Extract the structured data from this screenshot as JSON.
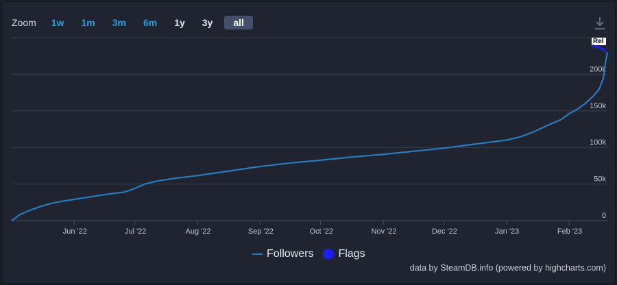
{
  "zoom": {
    "label": "Zoom",
    "buttons": [
      {
        "label": "1w",
        "style": "blue"
      },
      {
        "label": "1m",
        "style": "blue"
      },
      {
        "label": "3m",
        "style": "blue"
      },
      {
        "label": "6m",
        "style": "blue"
      },
      {
        "label": "1y",
        "style": "white"
      },
      {
        "label": "3y",
        "style": "white"
      },
      {
        "label": "all",
        "style": "active"
      }
    ]
  },
  "icons": {
    "export": "download-icon"
  },
  "colors": {
    "background": "#1f2430",
    "line": "#2a7bbd",
    "flags": "#1d1ff0",
    "grid": "#3a4050",
    "accent": "#2a9fe0"
  },
  "legend": {
    "followers": "Followers",
    "flags": "Flags"
  },
  "flag_marker": {
    "text": "Rel"
  },
  "credits": "data by SteamDB.info (powered by highcharts.com)",
  "chart_data": {
    "type": "line",
    "x_tick_labels": [
      "Jun '22",
      "Jul '22",
      "Aug '22",
      "Sep '22",
      "Oct '22",
      "Nov '22",
      "Dec '22",
      "Jan '23",
      "Feb '23"
    ],
    "y_tick_labels": [
      "0",
      "50k",
      "100k",
      "150k",
      "200k"
    ],
    "ylim": [
      0,
      250000
    ],
    "grid": "horizontal",
    "legend_position": "bottom-center",
    "series": [
      {
        "name": "Followers",
        "x": [
          "2022-05-01",
          "2022-05-05",
          "2022-05-10",
          "2022-05-15",
          "2022-05-20",
          "2022-05-25",
          "2022-06-01",
          "2022-06-10",
          "2022-06-20",
          "2022-06-26",
          "2022-07-01",
          "2022-07-06",
          "2022-07-12",
          "2022-07-20",
          "2022-08-01",
          "2022-08-15",
          "2022-09-01",
          "2022-09-15",
          "2022-10-01",
          "2022-10-15",
          "2022-11-01",
          "2022-11-15",
          "2022-12-01",
          "2022-12-15",
          "2023-01-01",
          "2023-01-08",
          "2023-01-15",
          "2023-01-22",
          "2023-01-28",
          "2023-02-01",
          "2023-02-05",
          "2023-02-09",
          "2023-02-13",
          "2023-02-16",
          "2023-02-18",
          "2023-02-19",
          "2023-02-20"
        ],
        "values": [
          0,
          8000,
          14000,
          19000,
          23000,
          26000,
          29000,
          33000,
          37000,
          39000,
          44000,
          50000,
          54000,
          57500,
          61500,
          67000,
          74000,
          78500,
          82500,
          86500,
          90500,
          94500,
          99000,
          104000,
          110000,
          114500,
          122000,
          131000,
          138000,
          146000,
          152000,
          160000,
          170000,
          180000,
          195000,
          215000,
          230000
        ]
      },
      {
        "name": "Flags",
        "flags": [
          {
            "x": "2023-02-20",
            "label": "Rel"
          }
        ]
      }
    ]
  }
}
